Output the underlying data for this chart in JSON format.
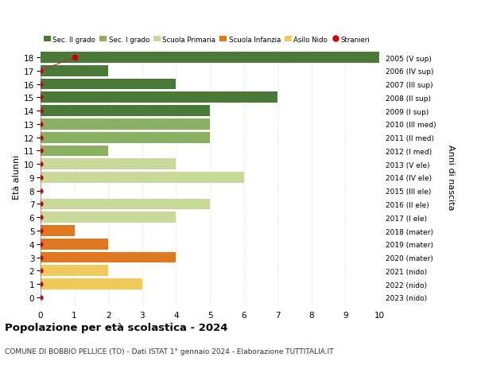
{
  "ages": [
    0,
    1,
    2,
    3,
    4,
    5,
    6,
    7,
    8,
    9,
    10,
    11,
    12,
    13,
    14,
    15,
    16,
    17,
    18
  ],
  "right_labels": [
    "2023 (nido)",
    "2022 (nido)",
    "2021 (nido)",
    "2020 (mater)",
    "2019 (mater)",
    "2018 (mater)",
    "2017 (I ele)",
    "2016 (II ele)",
    "2015 (III ele)",
    "2014 (IV ele)",
    "2013 (V ele)",
    "2012 (I med)",
    "2011 (II med)",
    "2010 (III med)",
    "2009 (I sup)",
    "2008 (II sup)",
    "2007 (III sup)",
    "2006 (IV sup)",
    "2005 (V sup)"
  ],
  "bar_values": [
    0,
    3,
    2,
    4,
    2,
    1,
    4,
    5,
    0,
    6,
    4,
    2,
    5,
    5,
    5,
    7,
    4,
    2,
    10
  ],
  "stranieri_values": [
    0,
    0,
    0,
    0,
    0,
    0,
    0,
    0,
    0,
    0,
    0,
    0,
    0,
    0,
    0,
    0,
    0,
    0,
    1
  ],
  "bar_colors": [
    "#f0ca5a",
    "#f0ca5a",
    "#f0ca5a",
    "#e07820",
    "#e07820",
    "#e07820",
    "#c8d898",
    "#c8d898",
    "#c8d898",
    "#c8d898",
    "#c8d898",
    "#88b060",
    "#88b060",
    "#88b060",
    "#4a7a38",
    "#4a7a38",
    "#4a7a38",
    "#4a7a38",
    "#4a7a38"
  ],
  "legend_labels": [
    "Sec. II grado",
    "Sec. I grado",
    "Scuola Primaria",
    "Scuola Infanzia",
    "Asilo Nido",
    "Stranieri"
  ],
  "legend_colors": [
    "#4a7a38",
    "#88b060",
    "#c8d898",
    "#e07820",
    "#f0ca5a",
    "#cc0000"
  ],
  "stranieri_color": "#cc0000",
  "stranieri_line_color": "#bb3322",
  "ylabel": "Età alunni",
  "right_ylabel": "Anni di nascita",
  "title": "Popolazione per età scolastica - 2024",
  "subtitle": "COMUNE DI BOBBIO PELLICE (TO) - Dati ISTAT 1° gennaio 2024 - Elaborazione TUTTITALIA.IT",
  "xlim": [
    0,
    10
  ],
  "background_color": "#ffffff",
  "grid_color": "#cccccc"
}
